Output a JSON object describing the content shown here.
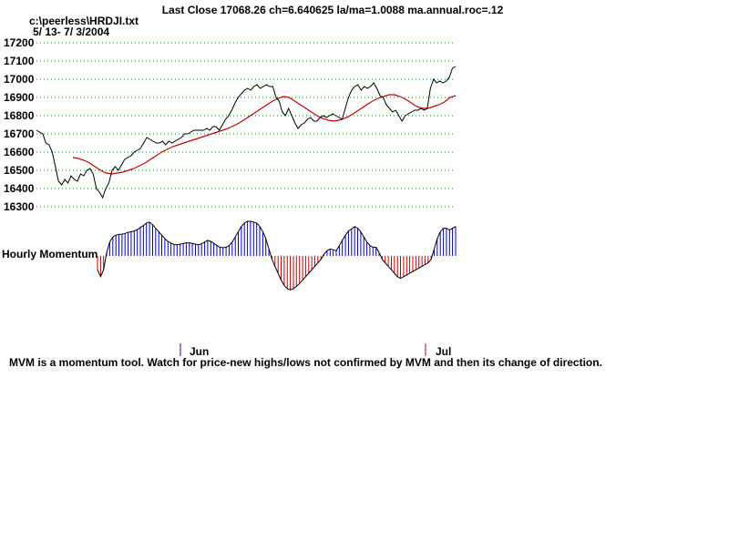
{
  "header": {
    "title": "Last Close 17068.26 ch=6.640625  la/ma=1.0088 ma.annual.roc=.12",
    "file": "c:\\peerless\\HRDJI.txt",
    "range": "5/ 13- 7/ 3/2004"
  },
  "colors": {
    "price": "#000000",
    "ma": "#cc0000",
    "grid": "#008000",
    "mom_pos": "#0000cc",
    "mom_neg": "#cc0000"
  },
  "chart_data": [
    {
      "type": "line",
      "title": "Last Close 17068.26 ch=6.640625  la/ma=1.0088 ma.annual.roc=.12",
      "ylim": [
        16300,
        17200
      ],
      "yticks": [
        17200,
        17100,
        17000,
        16900,
        16800,
        16700,
        16600,
        16500,
        16400,
        16300
      ],
      "grid": "horizontal dotted",
      "series": [
        {
          "role": "price",
          "values": [
            16720,
            16710,
            16700,
            16650,
            16640,
            16600,
            16520,
            16440,
            16420,
            16450,
            16430,
            16470,
            16450,
            16440,
            16480,
            16470,
            16500,
            16510,
            16480,
            16400,
            16380,
            16350,
            16400,
            16430,
            16500,
            16520,
            16500,
            16530,
            16560,
            16570,
            16580,
            16600,
            16610,
            16620,
            16650,
            16680,
            16670,
            16660,
            16650,
            16650,
            16660,
            16640,
            16660,
            16650,
            16660,
            16670,
            16680,
            16700,
            16700,
            16710,
            16720,
            16720,
            16720,
            16720,
            16730,
            16720,
            16740,
            16740,
            16720,
            16750,
            16780,
            16800,
            16830,
            16870,
            16900,
            16920,
            16940,
            16950,
            16940,
            16960,
            16970,
            16950,
            16960,
            16970,
            16960,
            16960,
            16900,
            16880,
            16820,
            16800,
            16840,
            16800,
            16760,
            16730,
            16750,
            16760,
            16780,
            16790,
            16770,
            16770,
            16790,
            16800,
            16790,
            16800,
            16810,
            16800,
            16790,
            16780,
            16840,
            16900,
            16940,
            16960,
            16970,
            16940,
            16960,
            16950,
            16960,
            16980,
            16950,
            16910,
            16900,
            16860,
            16840,
            16820,
            16830,
            16800,
            16770,
            16800,
            16810,
            16820,
            16830,
            16830,
            16840,
            16830,
            16840,
            16950,
            17000,
            16980,
            16990,
            16980,
            16990,
            17010,
            17060,
            17070
          ]
        },
        {
          "role": "moving-average",
          "values": [
            16570,
            16565,
            16555,
            16540,
            16520,
            16500,
            16485,
            16480,
            16485,
            16490,
            16500,
            16510,
            16525,
            16540,
            16560,
            16580,
            16600,
            16615,
            16630,
            16640,
            16650,
            16660,
            16670,
            16680,
            16690,
            16700,
            16710,
            16720,
            16730,
            16745,
            16760,
            16780,
            16800,
            16820,
            16840,
            16860,
            16880,
            16895,
            16905,
            16900,
            16880,
            16860,
            16840,
            16820,
            16800,
            16785,
            16775,
            16770,
            16775,
            16785,
            16800,
            16820,
            16840,
            16860,
            16880,
            16895,
            16905,
            16915,
            16915,
            16905,
            16890,
            16870,
            16850,
            16840,
            16840,
            16850,
            16860,
            16875,
            16900,
            16910
          ]
        }
      ]
    },
    {
      "type": "bar",
      "title": "Hourly Momentum",
      "baseline": 0,
      "month_markers": [
        "Jun",
        "Jul"
      ],
      "values": [
        -0.4,
        -0.6,
        -0.4,
        0.1,
        0.4,
        0.55,
        0.6,
        0.62,
        0.63,
        0.65,
        0.68,
        0.7,
        0.72,
        0.76,
        0.82,
        0.88,
        0.95,
        0.98,
        0.9,
        0.8,
        0.7,
        0.6,
        0.5,
        0.42,
        0.37,
        0.33,
        0.32,
        0.34,
        0.36,
        0.38,
        0.38,
        0.36,
        0.34,
        0.32,
        0.35,
        0.4,
        0.45,
        0.42,
        0.36,
        0.3,
        0.25,
        0.24,
        0.25,
        0.3,
        0.4,
        0.55,
        0.7,
        0.85,
        0.95,
        1.0,
        1.0,
        0.98,
        0.95,
        0.85,
        0.7,
        0.5,
        0.2,
        -0.1,
        -0.3,
        -0.5,
        -0.7,
        -0.85,
        -0.95,
        -0.98,
        -0.95,
        -0.88,
        -0.8,
        -0.7,
        -0.6,
        -0.5,
        -0.4,
        -0.3,
        -0.2,
        -0.1,
        0.05,
        0.15,
        0.2,
        0.18,
        0.15,
        0.3,
        0.45,
        0.6,
        0.72,
        0.78,
        0.85,
        0.8,
        0.7,
        0.55,
        0.4,
        0.3,
        0.25,
        0.25,
        0.1,
        -0.1,
        -0.2,
        -0.3,
        -0.4,
        -0.5,
        -0.6,
        -0.65,
        -0.6,
        -0.55,
        -0.5,
        -0.45,
        -0.4,
        -0.35,
        -0.3,
        -0.25,
        -0.2,
        -0.1,
        0.2,
        0.5,
        0.7,
        0.8,
        0.8,
        0.75,
        0.8,
        0.85
      ]
    }
  ],
  "y_labels": [
    "17200",
    "17100",
    "17000",
    "16900",
    "16800",
    "16700",
    "16600",
    "16500",
    "16400",
    "16300"
  ],
  "momentum": {
    "label": "Hourly Momentum"
  },
  "months": {
    "jun": "Jun",
    "jul": "Jul"
  },
  "footer": "MVM is a momentum tool. Watch for price-new highs/lows not confirmed by MVM and then its change of direction."
}
